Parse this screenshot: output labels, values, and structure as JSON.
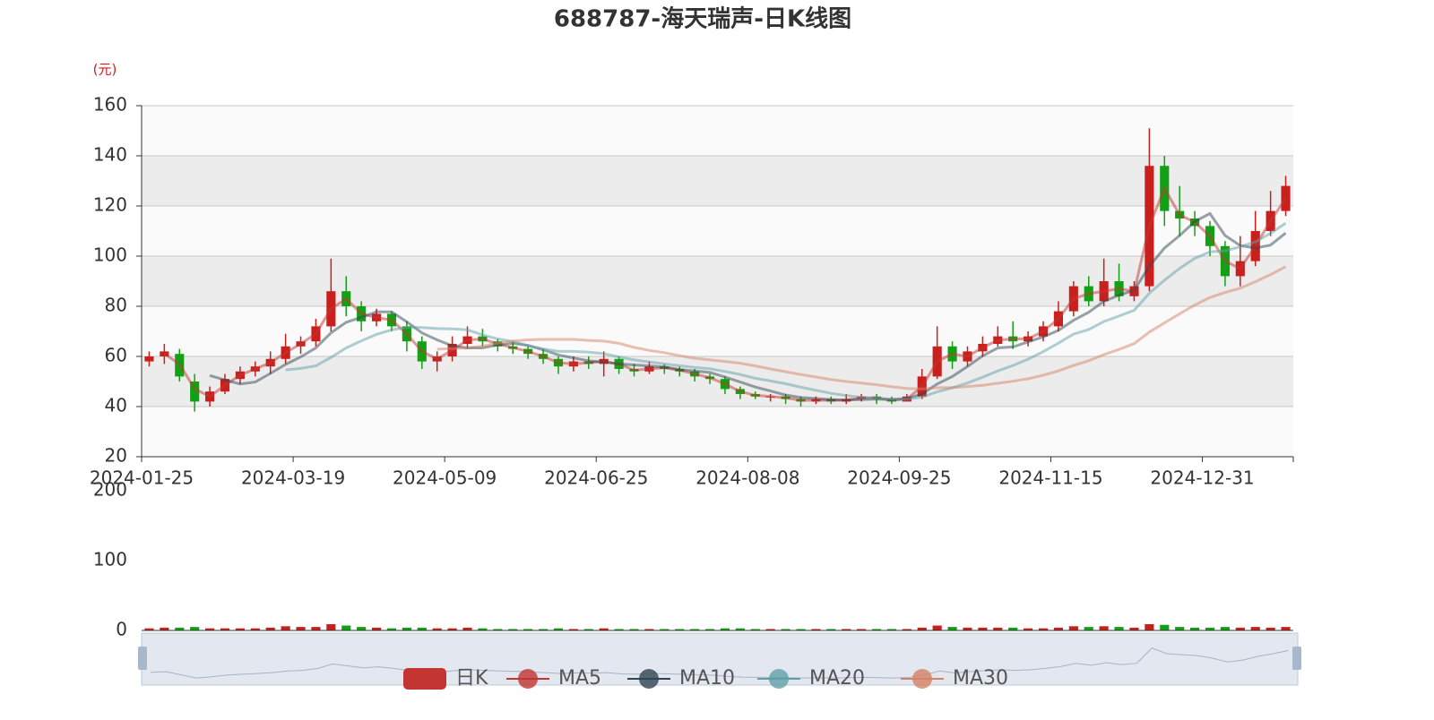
{
  "chart_data": [
    {
      "type": "candlestick",
      "title": "688787-海天瑞声-日K线图",
      "y_label": "(元)",
      "categories": [
        "2024-01-25",
        null,
        null,
        null,
        null,
        null,
        null,
        null,
        null,
        null,
        "2024-03-19",
        null,
        null,
        null,
        null,
        null,
        null,
        null,
        null,
        null,
        "2024-05-09",
        null,
        null,
        null,
        null,
        null,
        null,
        null,
        null,
        null,
        "2024-06-25",
        null,
        null,
        null,
        null,
        null,
        null,
        null,
        null,
        null,
        "2024-08-08",
        null,
        null,
        null,
        null,
        null,
        null,
        null,
        null,
        null,
        "2024-09-25",
        null,
        null,
        null,
        null,
        null,
        null,
        null,
        null,
        null,
        "2024-11-15",
        null,
        null,
        null,
        null,
        null,
        null,
        null,
        null,
        null,
        "2024-12-31",
        null,
        null,
        null,
        null,
        null
      ],
      "ylim": [
        20,
        160
      ],
      "yticks": [
        20,
        40,
        60,
        80,
        100,
        120,
        140,
        160
      ],
      "grid": true,
      "up_color": "#c9201e",
      "down_color": "#14a015",
      "series": [
        {
          "name": "日K",
          "type": "candlestick",
          "color": "#c23531",
          "values": [
            [
              58,
              60,
              56,
              62
            ],
            [
              60,
              62,
              57,
              65
            ],
            [
              61,
              52,
              50,
              63
            ],
            [
              50,
              42,
              38,
              53
            ],
            [
              42,
              46,
              40,
              48
            ],
            [
              46,
              51,
              45,
              53
            ],
            [
              51,
              54,
              49,
              56
            ],
            [
              54,
              56,
              52,
              58
            ],
            [
              56,
              59,
              53,
              62
            ],
            [
              59,
              64,
              57,
              69
            ],
            [
              64,
              66,
              61,
              68
            ],
            [
              66,
              72,
              64,
              75
            ],
            [
              72,
              86,
              70,
              99
            ],
            [
              86,
              80,
              76,
              92
            ],
            [
              80,
              74,
              70,
              82
            ],
            [
              74,
              77,
              72,
              79
            ],
            [
              77,
              72,
              70,
              78
            ],
            [
              72,
              66,
              62,
              74
            ],
            [
              66,
              58,
              55,
              68
            ],
            [
              58,
              60,
              54,
              62
            ],
            [
              60,
              65,
              58,
              68
            ],
            [
              65,
              68,
              63,
              72
            ],
            [
              68,
              66,
              64,
              71
            ],
            [
              66,
              64,
              62,
              67
            ],
            [
              64,
              63,
              61,
              66
            ],
            [
              63,
              61,
              59,
              64
            ],
            [
              61,
              59,
              57,
              63
            ],
            [
              59,
              56,
              53,
              60
            ],
            [
              56,
              58,
              54,
              60
            ],
            [
              58,
              57,
              55,
              60
            ],
            [
              57,
              59,
              52,
              62
            ],
            [
              59,
              55,
              53,
              60
            ],
            [
              55,
              54,
              52,
              57
            ],
            [
              54,
              56,
              53,
              58
            ],
            [
              56,
              55,
              53,
              57
            ],
            [
              55,
              54,
              52,
              56
            ],
            [
              54,
              52,
              50,
              55
            ],
            [
              52,
              51,
              49,
              53
            ],
            [
              51,
              47,
              45,
              52
            ],
            [
              47,
              45,
              43,
              48
            ],
            [
              45,
              44,
              43,
              46
            ],
            [
              44,
              44,
              42,
              45
            ],
            [
              44,
              43,
              41,
              45
            ],
            [
              43,
              42,
              40,
              44
            ],
            [
              42,
              43,
              41,
              44
            ],
            [
              43,
              42,
              41,
              44
            ],
            [
              42,
              43,
              41,
              45
            ],
            [
              43,
              44,
              42,
              45
            ],
            [
              44,
              43,
              41,
              45
            ],
            [
              43,
              42,
              41,
              44
            ],
            [
              42,
              44,
              42,
              45
            ],
            [
              44,
              52,
              43,
              55
            ],
            [
              52,
              64,
              51,
              72
            ],
            [
              64,
              58,
              55,
              66
            ],
            [
              58,
              62,
              56,
              64
            ],
            [
              62,
              65,
              60,
              68
            ],
            [
              65,
              68,
              64,
              72
            ],
            [
              68,
              66,
              63,
              74
            ],
            [
              66,
              68,
              64,
              70
            ],
            [
              68,
              72,
              66,
              74
            ],
            [
              72,
              78,
              70,
              82
            ],
            [
              78,
              88,
              76,
              90
            ],
            [
              88,
              82,
              80,
              92
            ],
            [
              82,
              90,
              80,
              99
            ],
            [
              90,
              84,
              82,
              97
            ],
            [
              84,
              88,
              82,
              90
            ],
            [
              88,
              136,
              86,
              151
            ],
            [
              136,
              118,
              112,
              140
            ],
            [
              118,
              115,
              108,
              128
            ],
            [
              115,
              112,
              108,
              118
            ],
            [
              112,
              104,
              100,
              114
            ],
            [
              104,
              92,
              88,
              106
            ],
            [
              92,
              98,
              88,
              108
            ],
            [
              98,
              110,
              96,
              118
            ],
            [
              110,
              118,
              108,
              126
            ],
            [
              118,
              128,
              116,
              132
            ]
          ]
        },
        {
          "name": "MA5",
          "type": "line",
          "color": "#c23531",
          "values": [
            null,
            61,
            57,
            47,
            44,
            48.5,
            52.5,
            55,
            57.5,
            61.5,
            65,
            69,
            79,
            83,
            77,
            75.5,
            74.5,
            69,
            62,
            59,
            62.5,
            66.5,
            67,
            65,
            63.5,
            62,
            60,
            57.5,
            57,
            57.5,
            58,
            57,
            54.5,
            55,
            55.5,
            54.5,
            53,
            51.5,
            49,
            46,
            44.5,
            44,
            43.5,
            42.5,
            42.5,
            42.5,
            42.5,
            43.5,
            43.5,
            42.5,
            43,
            48,
            58,
            61,
            60,
            63.5,
            66.5,
            67,
            67,
            70,
            75,
            83,
            85,
            86,
            87,
            86,
            112,
            127,
            116.5,
            113.5,
            108,
            98,
            95,
            104,
            114,
            123
          ]
        },
        {
          "name": "MA10",
          "type": "line",
          "color": "#2f4554",
          "values": [
            null,
            null,
            null,
            null,
            52.4,
            50.6,
            49,
            49.8,
            53.2,
            56.8,
            59.8,
            63.4,
            69.4,
            73.6,
            75.6,
            77.8,
            77.8,
            73.8,
            69.4,
            66.6,
            64.2,
            63.4,
            63.4,
            64.6,
            65.2,
            64.4,
            62.6,
            60.6,
            59.4,
            58.2,
            57.8,
            57,
            56.6,
            56.2,
            55.8,
            54.8,
            54.2,
            53.6,
            51.8,
            49.8,
            47.8,
            46.2,
            44.6,
            43.6,
            43.2,
            42.8,
            42.6,
            42.8,
            43,
            42.8,
            43.2,
            45,
            49,
            52,
            56,
            60.2,
            63.4,
            63.8,
            65.8,
            67.8,
            70.4,
            74.4,
            77.6,
            82,
            84.4,
            86.4,
            96,
            103.2,
            108.2,
            113.8,
            117,
            108.2,
            104.2,
            103.2,
            104.4,
            109.2
          ]
        },
        {
          "name": "MA20",
          "type": "line",
          "color": "#61a0a8",
          "values": [
            null,
            null,
            null,
            null,
            null,
            null,
            null,
            null,
            null,
            54.6,
            55.2,
            56.2,
            59.6,
            63.4,
            66.2,
            68.8,
            70.6,
            71.6,
            71.5,
            71.1,
            71,
            70.6,
            68.6,
            67,
            65.9,
            64.3,
            63,
            62,
            62,
            61.7,
            61.1,
            59.8,
            58.6,
            57.8,
            57,
            56.3,
            55.6,
            55.1,
            54,
            52.8,
            51.3,
            50.2,
            49.1,
            47.7,
            46.5,
            45.3,
            44.4,
            43.7,
            43.3,
            43,
            43,
            43.8,
            45.9,
            47.5,
            49.4,
            51.7,
            54.2,
            56.4,
            58.9,
            61.9,
            65.3,
            68.9,
            70.7,
            73.9,
            76.1,
            78.4,
            85.2,
            90.4,
            95.1,
            99.1,
            101.7,
            102.1,
            103.7,
            105.7,
            109.1,
            113.1
          ]
        },
        {
          "name": "MA30",
          "type": "line",
          "color": "#d48265",
          "values": [
            null,
            null,
            null,
            null,
            null,
            null,
            null,
            null,
            null,
            null,
            null,
            null,
            null,
            null,
            null,
            null,
            null,
            null,
            null,
            62.9,
            63.1,
            63.4,
            64.1,
            65.2,
            66.1,
            66.6,
            66.8,
            66.8,
            66.8,
            66.4,
            66.1,
            65.2,
            63.6,
            62.4,
            61.5,
            60.3,
            59.3,
            58.6,
            58,
            57.3,
            56.2,
            55,
            53.9,
            52.8,
            51.8,
            50.8,
            50,
            49.4,
            48.7,
            47.9,
            47.2,
            47,
            47.5,
            47.6,
            48,
            48.5,
            49.3,
            50.1,
            51.1,
            52.5,
            54.2,
            56.4,
            58.3,
            60.7,
            62.8,
            65.1,
            69.7,
            73.4,
            77,
            80.5,
            83.5,
            85.5,
            87.2,
            89.8,
            92.6,
            95.8
          ]
        }
      ]
    },
    {
      "type": "bar",
      "ylim": [
        0,
        200
      ],
      "yticks": [
        0,
        100,
        200
      ],
      "values": [
        3,
        4,
        4,
        5,
        3,
        3,
        3,
        3,
        4,
        6,
        5,
        5,
        9,
        7,
        5,
        4,
        3,
        4,
        4,
        3,
        3,
        4,
        3,
        2,
        2,
        2,
        2,
        3,
        2,
        2,
        3,
        2,
        2,
        2,
        2,
        2,
        2,
        2,
        3,
        3,
        2,
        2,
        2,
        2,
        2,
        2,
        2,
        2,
        2,
        2,
        2,
        4,
        7,
        5,
        4,
        4,
        4,
        4,
        3,
        3,
        4,
        6,
        5,
        6,
        5,
        4,
        9,
        8,
        5,
        4,
        4,
        5,
        4,
        5,
        4,
        5
      ]
    }
  ]
}
